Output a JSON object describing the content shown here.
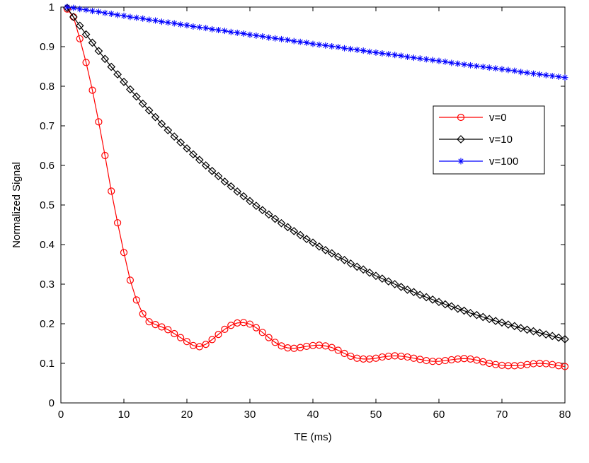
{
  "chart_data": {
    "type": "line",
    "title": "",
    "xlabel": "TE (ms)",
    "ylabel": "Normalized Signal",
    "xlim": [
      0,
      80
    ],
    "ylim": [
      0,
      1
    ],
    "grid": false,
    "legend_position": "upper-right",
    "x_ticks": [
      0,
      10,
      20,
      30,
      40,
      50,
      60,
      70,
      80
    ],
    "y_ticks": [
      0,
      0.1,
      0.2,
      0.3,
      0.4,
      0.5,
      0.6,
      0.7,
      0.8,
      0.9,
      1
    ],
    "x_tick_labels": [
      "0",
      "10",
      "20",
      "30",
      "40",
      "50",
      "60",
      "70",
      "80"
    ],
    "y_tick_labels": [
      "0",
      "0.1",
      "0.2",
      "0.3",
      "0.4",
      "0.5",
      "0.6",
      "0.7",
      "0.8",
      "0.9",
      "1"
    ],
    "x": [
      1,
      2,
      3,
      4,
      5,
      6,
      7,
      8,
      9,
      10,
      11,
      12,
      13,
      14,
      15,
      16,
      17,
      18,
      19,
      20,
      21,
      22,
      23,
      24,
      25,
      26,
      27,
      28,
      29,
      30,
      31,
      32,
      33,
      34,
      35,
      36,
      37,
      38,
      39,
      40,
      41,
      42,
      43,
      44,
      45,
      46,
      47,
      48,
      49,
      50,
      51,
      52,
      53,
      54,
      55,
      56,
      57,
      58,
      59,
      60,
      61,
      62,
      63,
      64,
      65,
      66,
      67,
      68,
      69,
      70,
      71,
      72,
      73,
      74,
      75,
      76,
      77,
      78,
      79,
      80
    ],
    "series": [
      {
        "name": "v=0",
        "color": "#ff0000",
        "marker": "circle",
        "values": [
          0.995,
          0.975,
          0.92,
          0.86,
          0.79,
          0.71,
          0.625,
          0.535,
          0.455,
          0.38,
          0.31,
          0.26,
          0.225,
          0.205,
          0.198,
          0.192,
          0.185,
          0.175,
          0.165,
          0.155,
          0.145,
          0.142,
          0.148,
          0.16,
          0.173,
          0.186,
          0.196,
          0.202,
          0.203,
          0.199,
          0.19,
          0.178,
          0.165,
          0.153,
          0.144,
          0.139,
          0.138,
          0.14,
          0.143,
          0.145,
          0.146,
          0.144,
          0.14,
          0.133,
          0.125,
          0.118,
          0.113,
          0.111,
          0.111,
          0.113,
          0.116,
          0.118,
          0.119,
          0.118,
          0.116,
          0.113,
          0.11,
          0.107,
          0.105,
          0.105,
          0.107,
          0.109,
          0.111,
          0.112,
          0.111,
          0.108,
          0.104,
          0.1,
          0.097,
          0.095,
          0.094,
          0.094,
          0.095,
          0.097,
          0.099,
          0.1,
          0.099,
          0.097,
          0.094,
          0.092
        ]
      },
      {
        "name": "v=10",
        "color": "#000000",
        "marker": "diamond",
        "values": [
          0.998,
          0.975,
          0.953,
          0.931,
          0.91,
          0.889,
          0.869,
          0.849,
          0.83,
          0.811,
          0.792,
          0.774,
          0.756,
          0.739,
          0.722,
          0.705,
          0.689,
          0.673,
          0.658,
          0.643,
          0.628,
          0.614,
          0.6,
          0.586,
          0.573,
          0.559,
          0.547,
          0.534,
          0.522,
          0.51,
          0.498,
          0.487,
          0.476,
          0.465,
          0.454,
          0.444,
          0.434,
          0.424,
          0.414,
          0.405,
          0.395,
          0.386,
          0.378,
          0.369,
          0.361,
          0.352,
          0.344,
          0.337,
          0.329,
          0.321,
          0.314,
          0.307,
          0.3,
          0.293,
          0.286,
          0.28,
          0.273,
          0.267,
          0.261,
          0.255,
          0.249,
          0.244,
          0.238,
          0.233,
          0.227,
          0.222,
          0.217,
          0.212,
          0.207,
          0.203,
          0.198,
          0.194,
          0.189,
          0.185,
          0.181,
          0.177,
          0.173,
          0.169,
          0.165,
          0.161
        ]
      },
      {
        "name": "v=100",
        "color": "#0000ff",
        "marker": "star",
        "values": [
          1.0,
          0.998,
          0.995,
          0.993,
          0.99,
          0.988,
          0.985,
          0.983,
          0.98,
          0.978,
          0.975,
          0.973,
          0.971,
          0.968,
          0.966,
          0.963,
          0.961,
          0.959,
          0.956,
          0.954,
          0.951,
          0.949,
          0.947,
          0.944,
          0.942,
          0.94,
          0.937,
          0.935,
          0.933,
          0.93,
          0.928,
          0.926,
          0.923,
          0.921,
          0.919,
          0.917,
          0.914,
          0.912,
          0.91,
          0.907,
          0.905,
          0.903,
          0.901,
          0.899,
          0.896,
          0.894,
          0.892,
          0.89,
          0.887,
          0.885,
          0.883,
          0.881,
          0.879,
          0.877,
          0.874,
          0.872,
          0.87,
          0.868,
          0.866,
          0.864,
          0.862,
          0.859,
          0.857,
          0.855,
          0.853,
          0.851,
          0.849,
          0.847,
          0.845,
          0.843,
          0.841,
          0.839,
          0.836,
          0.834,
          0.832,
          0.83,
          0.828,
          0.826,
          0.824,
          0.822
        ]
      }
    ]
  }
}
